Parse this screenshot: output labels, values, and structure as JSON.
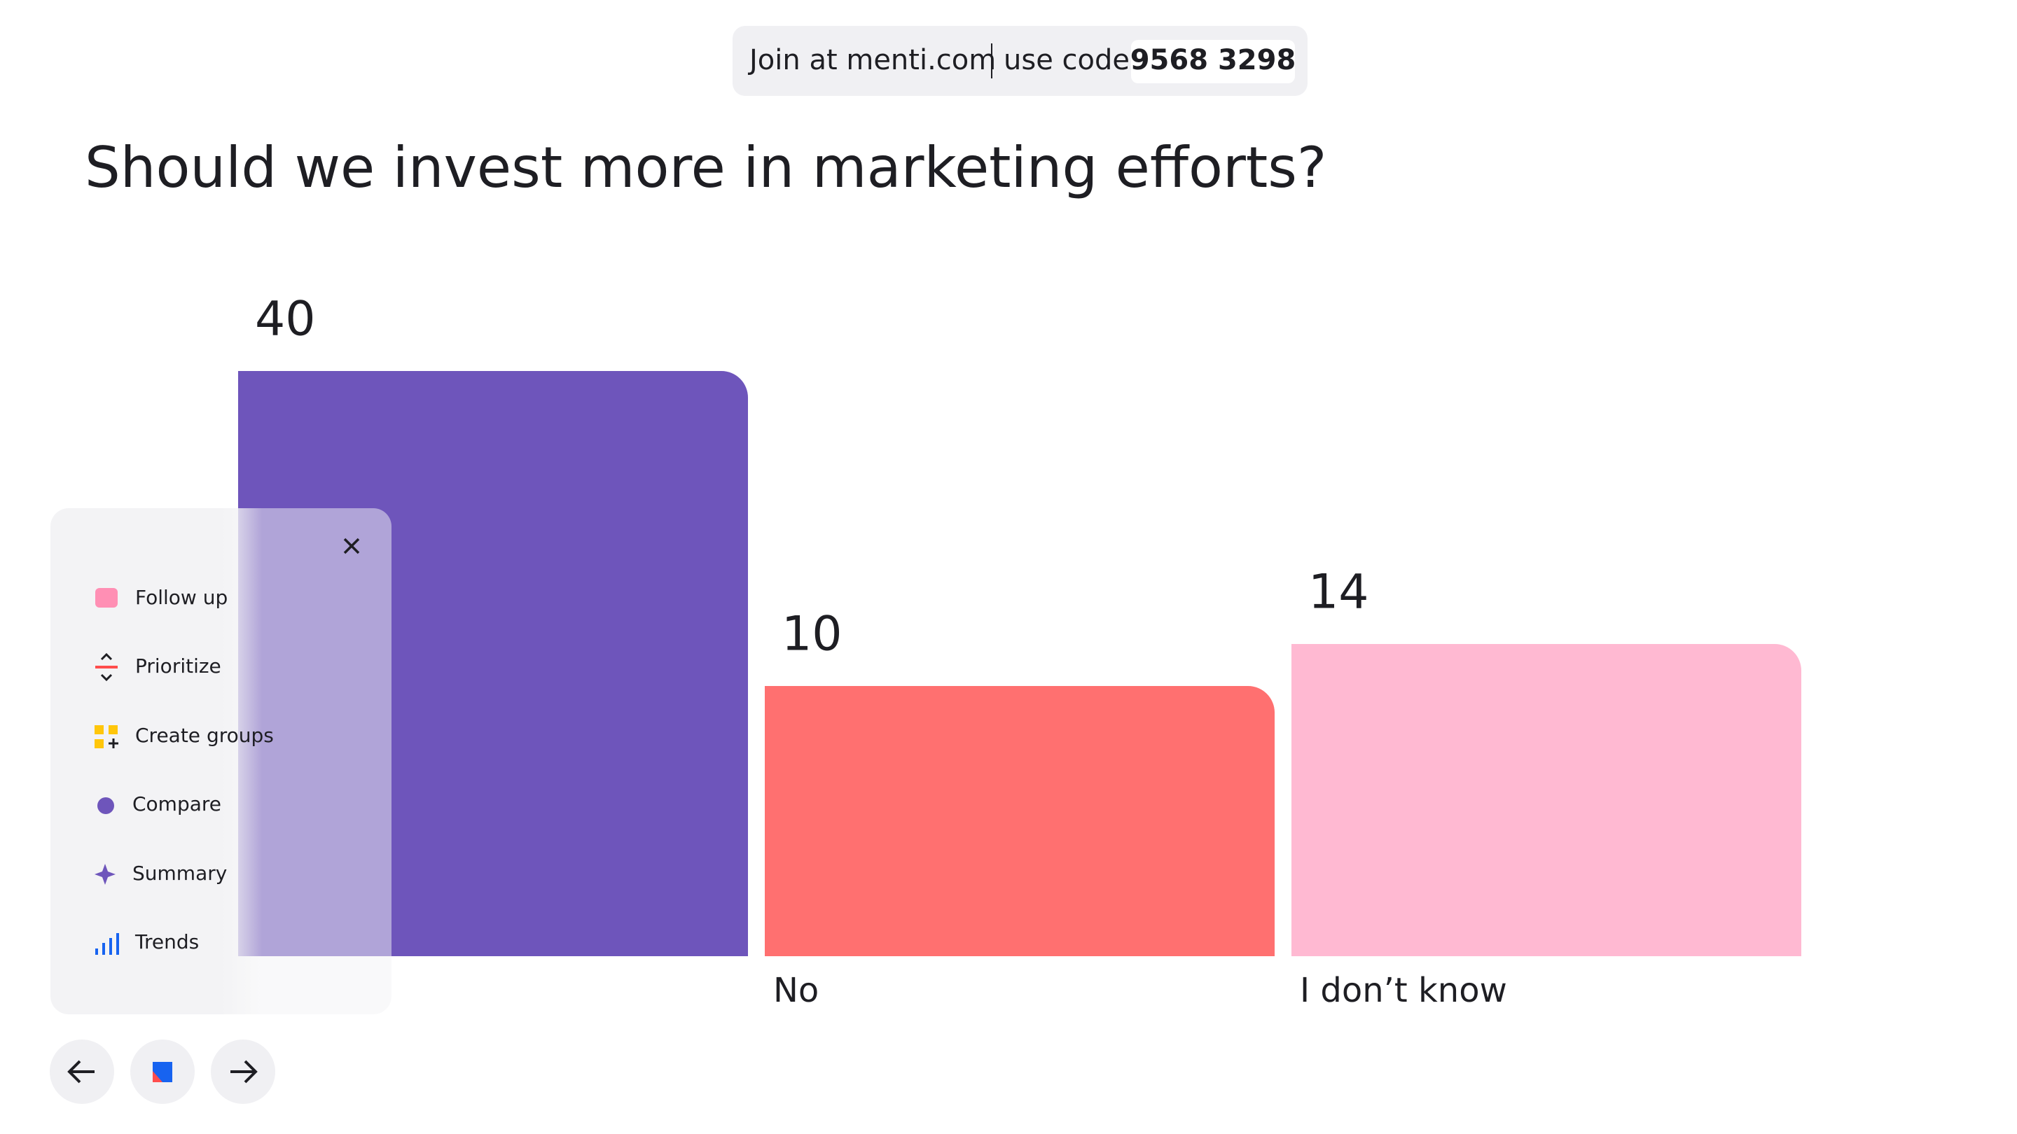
{
  "header": {
    "join": "Join at menti.com",
    "use_code": "use code",
    "code": "9568 3298"
  },
  "chart_data": {
    "type": "bar",
    "title": "Should we invest more in marketing efforts?",
    "categories": [
      null,
      "No",
      "I don’t know"
    ],
    "values": [
      40,
      10,
      14
    ],
    "colors": [
      "#6e55bb",
      "#ff7070",
      "#ffb9d2"
    ]
  },
  "menu": {
    "items": [
      "Follow up",
      "Prioritize",
      "Create groups",
      "Compare",
      "Summary",
      "Trends"
    ]
  }
}
